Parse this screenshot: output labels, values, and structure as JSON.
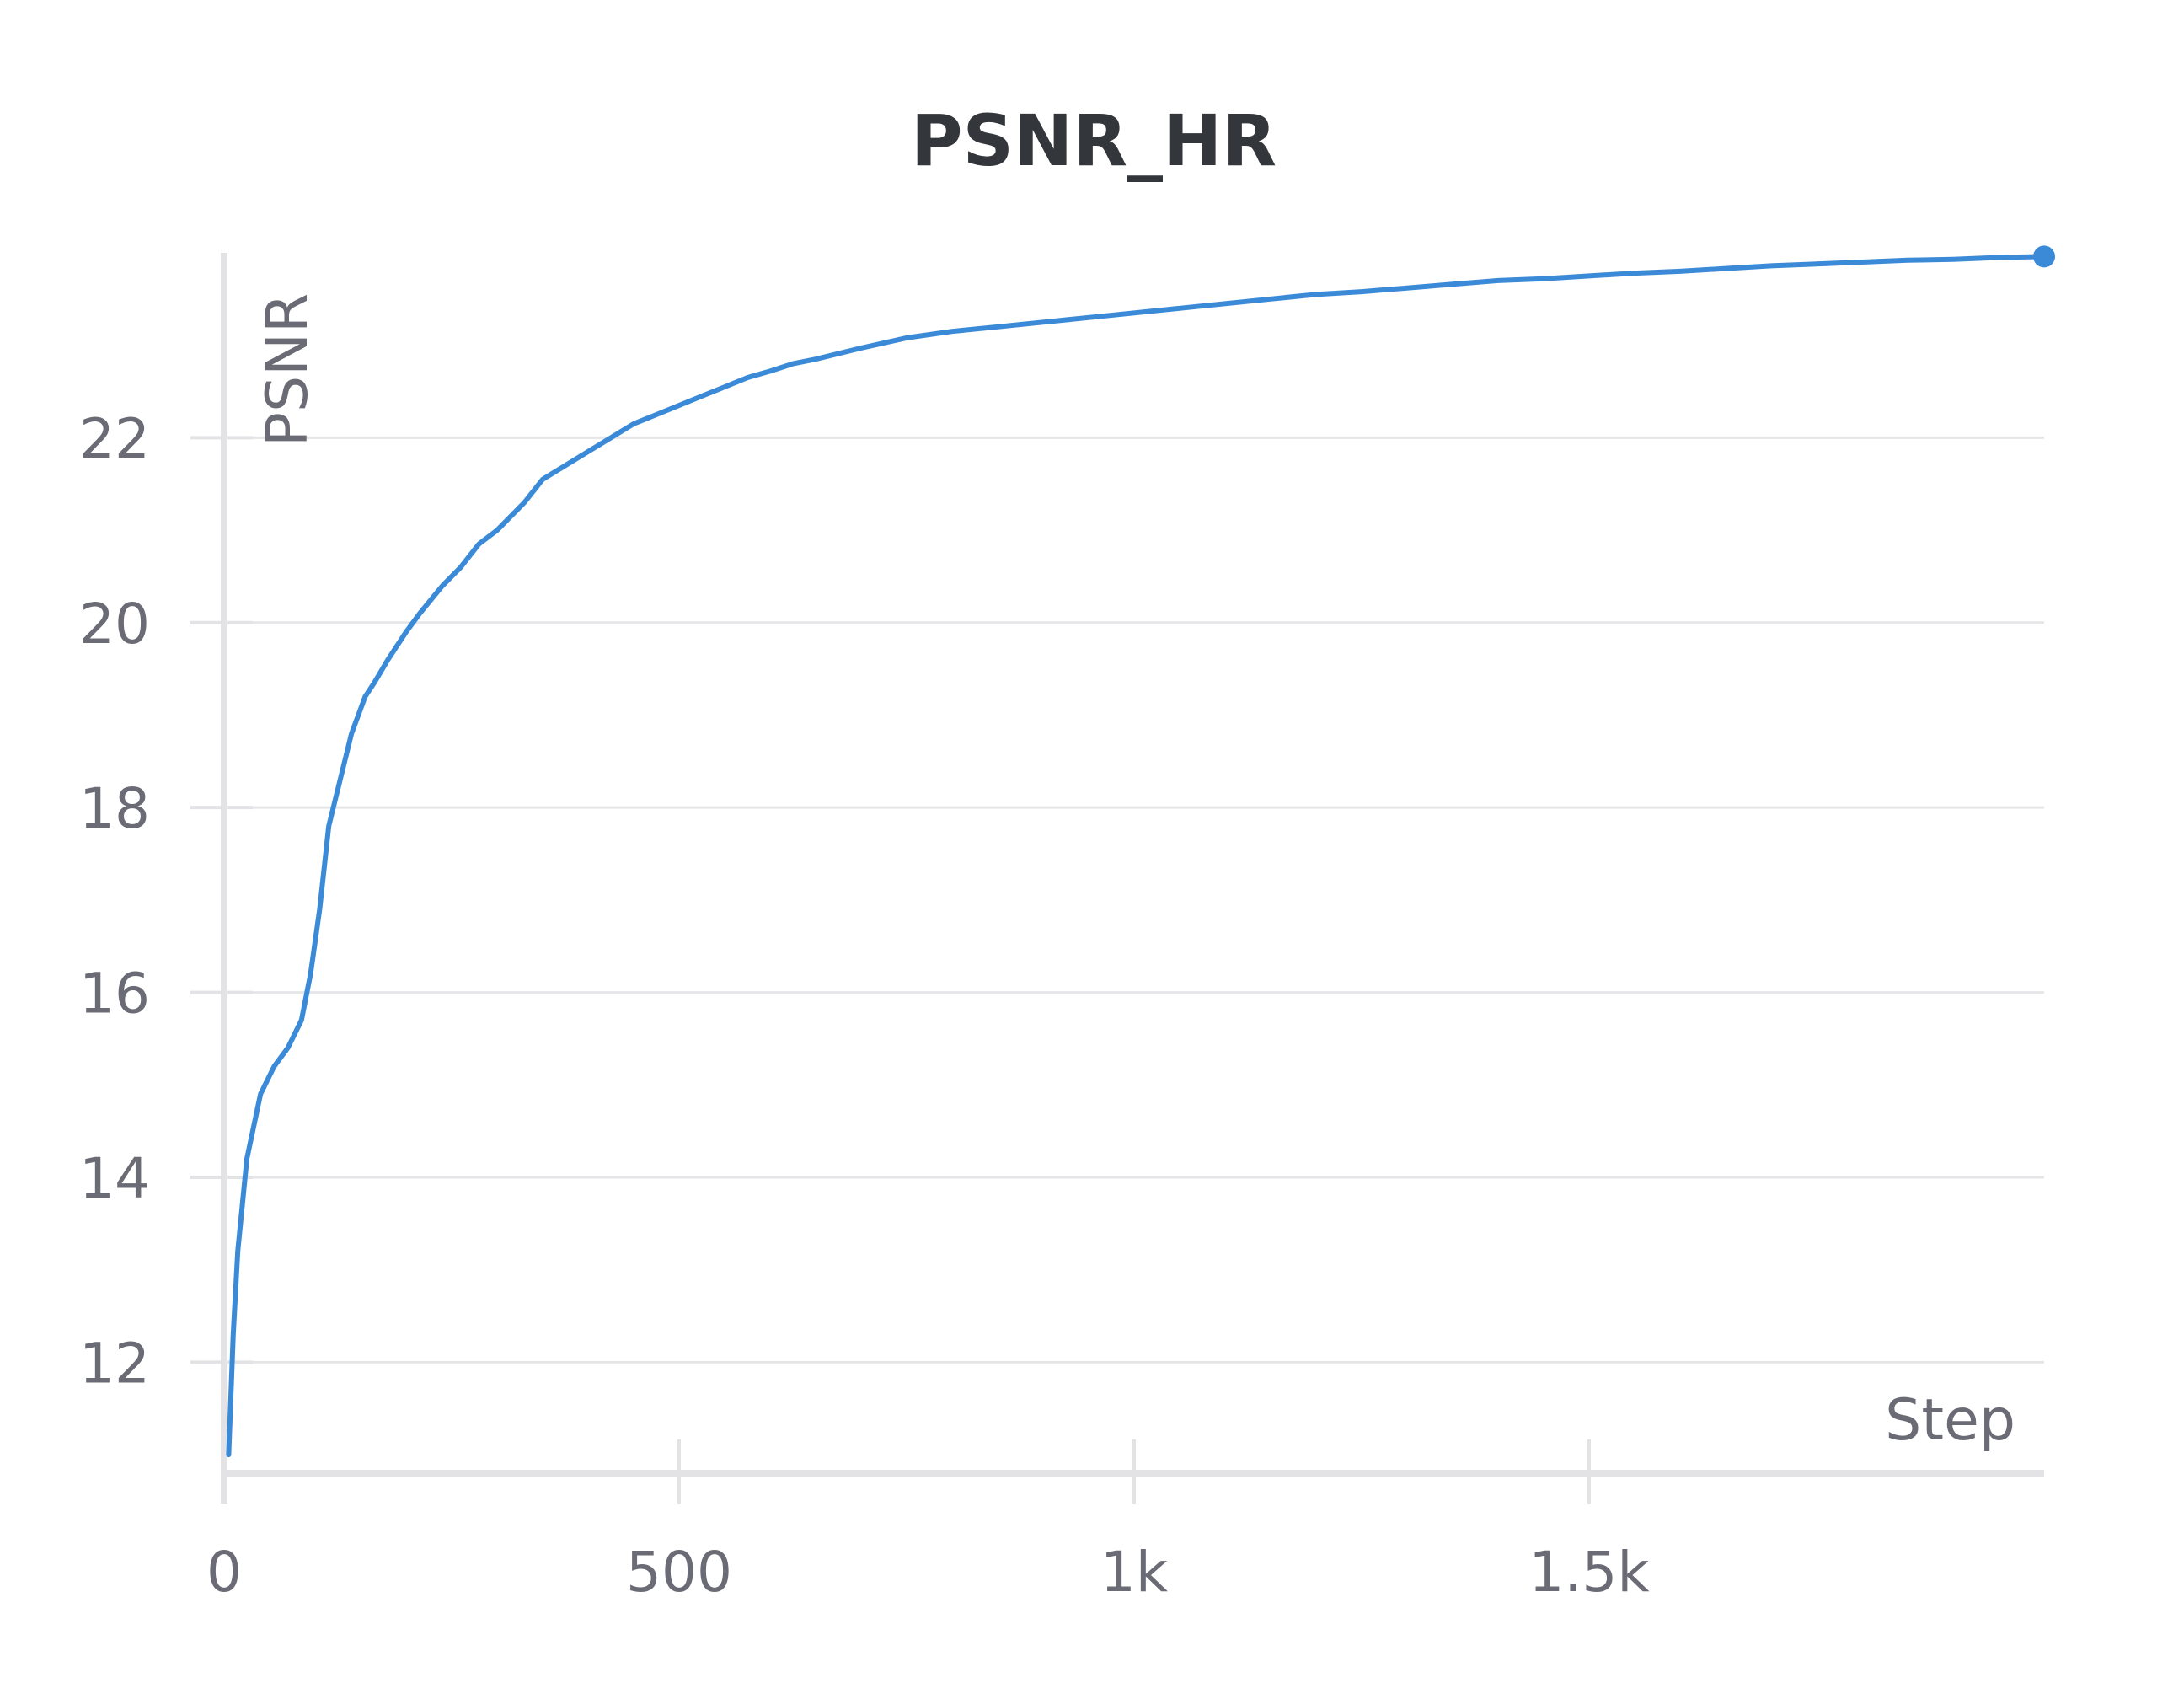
{
  "chart_data": {
    "type": "line",
    "title": "PSNR_HR",
    "xlabel": "Step",
    "ylabel": "PSNR",
    "xlim": [
      0,
      2000
    ],
    "ylim": [
      10.8,
      24.0
    ],
    "x_ticks": [
      {
        "value": 0,
        "label": "0"
      },
      {
        "value": 500,
        "label": "500"
      },
      {
        "value": 1000,
        "label": "1k"
      },
      {
        "value": 1500,
        "label": "1.5k"
      }
    ],
    "y_ticks": [
      {
        "value": 12,
        "label": "12"
      },
      {
        "value": 14,
        "label": "14"
      },
      {
        "value": 16,
        "label": "16"
      },
      {
        "value": 18,
        "label": "18"
      },
      {
        "value": 20,
        "label": "20"
      },
      {
        "value": 22,
        "label": "22"
      }
    ],
    "grid": true,
    "series": [
      {
        "color": "#3a8ad8",
        "x": [
          5,
          10,
          15,
          25,
          40,
          55,
          70,
          85,
          95,
          105,
          115,
          120,
          130,
          140,
          155,
          165,
          180,
          200,
          215,
          240,
          260,
          280,
          300,
          330,
          350,
          375,
          400,
          425,
          450,
          475,
          500,
          525,
          550,
          575,
          600,
          625,
          650,
          700,
          750,
          800,
          850,
          900,
          950,
          1000,
          1050,
          1100,
          1150,
          1200,
          1250,
          1300,
          1350,
          1400,
          1450,
          1500,
          1550,
          1600,
          1650,
          1700,
          1750,
          1800,
          1850,
          1900,
          1950,
          2000
        ],
        "y": [
          11.0,
          12.3,
          13.2,
          14.2,
          14.9,
          15.2,
          15.4,
          15.7,
          16.2,
          16.9,
          17.8,
          18.0,
          18.4,
          18.8,
          19.2,
          19.35,
          19.6,
          19.9,
          20.1,
          20.4,
          20.6,
          20.85,
          21.0,
          21.3,
          21.55,
          21.7,
          21.85,
          22.0,
          22.15,
          22.25,
          22.35,
          22.45,
          22.55,
          22.65,
          22.72,
          22.8,
          22.85,
          22.97,
          23.08,
          23.15,
          23.2,
          23.25,
          23.3,
          23.35,
          23.4,
          23.45,
          23.5,
          23.55,
          23.58,
          23.62,
          23.66,
          23.7,
          23.72,
          23.75,
          23.78,
          23.8,
          23.83,
          23.86,
          23.88,
          23.9,
          23.92,
          23.93,
          23.95,
          23.96
        ]
      }
    ]
  }
}
